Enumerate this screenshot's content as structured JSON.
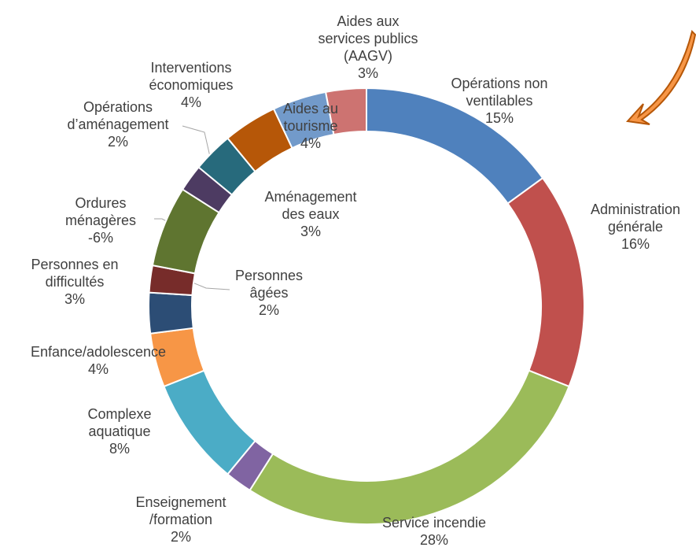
{
  "chart_data": {
    "type": "pie",
    "categories": [
      "Opérations non\nventilables",
      "Administration\ngénérale",
      "Service incendie",
      "Enseignement\n/formation",
      "Complexe\naquatique",
      "Enfance/adolescence",
      "Personnes en\ndifficultés",
      "Personnes\nâgées",
      "Ordures\nménagères",
      "Opérations\nd’aménagement",
      "Aménagement\ndes eaux",
      "Interventions\néconomiques",
      "Aides au\ntourisme",
      "Aides aux\nservices publics\n(AAGV)"
    ],
    "values": [
      15,
      16,
      28,
      2,
      8,
      4,
      3,
      2,
      -6,
      2,
      3,
      4,
      4,
      3
    ],
    "value_labels": [
      "15%",
      "16%",
      "28%",
      "2%",
      "8%",
      "4%",
      "3%",
      "2%",
      "-6%",
      "2%",
      "3%",
      "4%",
      "4%",
      "3%"
    ],
    "colors": [
      "#4f81bd",
      "#c0504d",
      "#9bbb59",
      "#8064a2",
      "#4bacc6",
      "#f79646",
      "#2c4d75",
      "#772c2a",
      "#5f7530",
      "#4d3b62",
      "#276a7c",
      "#b65708",
      "#729aca",
      "#cd7371"
    ]
  }
}
